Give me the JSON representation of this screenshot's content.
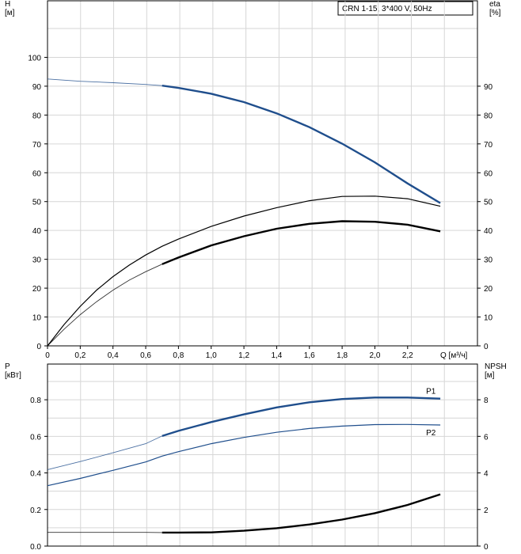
{
  "chart_data": [
    {
      "type": "line",
      "title": "CRN 1-15, 3*400 V, 50Hz",
      "xlabel": "Q [м³/ч]",
      "ylabel_left": "H\n[м]",
      "ylabel_right": "eta\n[%]",
      "xlim": [
        0,
        2.4
      ],
      "ylim": [
        0,
        110
      ],
      "x_ticks": [
        "0",
        "0,2",
        "0,4",
        "0,6",
        "0,8",
        "1,0",
        "1,2",
        "1,4",
        "1,6",
        "1,8",
        "2,0",
        "2,2"
      ],
      "y_ticks": [
        "0",
        "10",
        "20",
        "30",
        "40",
        "50",
        "60",
        "70",
        "80",
        "90",
        "100"
      ],
      "y_ticks_right": [
        "0",
        "10",
        "20",
        "30",
        "40",
        "50",
        "60",
        "70",
        "80",
        "90"
      ],
      "grid": true,
      "series": [
        {
          "role": "head",
          "color": "#1f4e8c",
          "x": [
            0,
            0.2,
            0.4,
            0.6,
            0.7,
            0.8,
            1.0,
            1.2,
            1.4,
            1.6,
            1.8,
            2.0,
            2.2,
            2.4
          ],
          "y": [
            92.5,
            91.7,
            91.2,
            90.6,
            90.2,
            89.4,
            87.4,
            84.5,
            80.6,
            75.8,
            70.1,
            63.6,
            56.3,
            49.5
          ],
          "bold_from": 0.7
        },
        {
          "role": "eta",
          "color": "#000000",
          "x": [
            0,
            0.1,
            0.2,
            0.3,
            0.4,
            0.5,
            0.6,
            0.7,
            0.8,
            1.0,
            1.2,
            1.4,
            1.6,
            1.8,
            2.0,
            2.2,
            2.4
          ],
          "y": [
            0,
            7.3,
            13.7,
            19.3,
            24.0,
            28.0,
            31.5,
            34.5,
            37.0,
            41.4,
            45.0,
            47.9,
            50.3,
            51.8,
            51.9,
            51.0,
            48.4
          ],
          "bold_from": 2.5
        },
        {
          "role": "eta",
          "color": "#000000",
          "x": [
            0,
            0.1,
            0.2,
            0.3,
            0.4,
            0.5,
            0.6,
            0.7,
            0.8,
            1.0,
            1.2,
            1.4,
            1.6,
            1.8,
            2.0,
            2.2,
            2.4
          ],
          "y": [
            0,
            5.7,
            10.8,
            15.3,
            19.3,
            22.8,
            25.7,
            28.3,
            30.6,
            34.8,
            38.0,
            40.6,
            42.3,
            43.2,
            43.0,
            42.0,
            39.7
          ],
          "bold_from": 0.7
        }
      ]
    },
    {
      "type": "line",
      "xlabel": "",
      "ylabel_left": "P\n[кВт]",
      "ylabel_right": "NPSH\n[м]",
      "xlim": [
        0,
        2.4
      ],
      "ylim": [
        0,
        1.0
      ],
      "y_ticks": [
        "0.0",
        "0.2",
        "0.4",
        "0.6",
        "0.8"
      ],
      "y_ticks_right": [
        "0",
        "2",
        "4",
        "6",
        "8"
      ],
      "grid": true,
      "series": [
        {
          "name": "P1",
          "color": "#1f4e8c",
          "x": [
            0,
            0.2,
            0.4,
            0.6,
            0.7,
            0.8,
            1.0,
            1.2,
            1.4,
            1.6,
            1.8,
            2.0,
            2.2,
            2.4
          ],
          "y": [
            0.418,
            0.462,
            0.51,
            0.56,
            0.602,
            0.63,
            0.678,
            0.72,
            0.758,
            0.786,
            0.804,
            0.812,
            0.812,
            0.806
          ],
          "bold_from": 0.7
        },
        {
          "name": "P2",
          "color": "#1f4e8c",
          "x": [
            0,
            0.2,
            0.4,
            0.6,
            0.7,
            0.8,
            1.0,
            1.2,
            1.4,
            1.6,
            1.8,
            2.0,
            2.2,
            2.4
          ],
          "y": [
            0.33,
            0.37,
            0.414,
            0.46,
            0.492,
            0.516,
            0.56,
            0.594,
            0.622,
            0.643,
            0.656,
            0.664,
            0.665,
            0.662
          ],
          "bold_from": 2.5
        },
        {
          "role": "npsh",
          "color": "#000000",
          "x": [
            0,
            0.2,
            0.4,
            0.6,
            0.7,
            0.8,
            1.0,
            1.2,
            1.4,
            1.6,
            1.8,
            2.0,
            2.2,
            2.4
          ],
          "y": [
            0.075,
            0.075,
            0.075,
            0.075,
            0.074,
            0.074,
            0.075,
            0.084,
            0.098,
            0.118,
            0.145,
            0.18,
            0.225,
            0.283
          ],
          "bold_from": 0.7
        }
      ]
    }
  ]
}
